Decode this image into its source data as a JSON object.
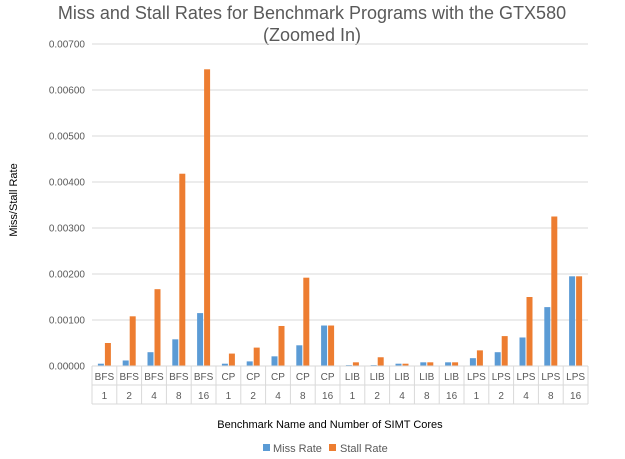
{
  "chart_data": {
    "type": "bar",
    "title_line1": "Miss and Stall Rates for Benchmark Programs with the GTX580",
    "title_line2": "(Zoomed In)",
    "xlabel": "Benchmark Name and Number of SIMT Cores",
    "ylabel": "Miss/Stall Rate",
    "ylim": [
      0,
      0.007
    ],
    "yticks": [
      "0.00000",
      "0.00100",
      "0.00200",
      "0.00300",
      "0.00400",
      "0.00500",
      "0.00600",
      "0.00700"
    ],
    "categories": [
      {
        "name": "BFS",
        "cores": "1"
      },
      {
        "name": "BFS",
        "cores": "2"
      },
      {
        "name": "BFS",
        "cores": "4"
      },
      {
        "name": "BFS",
        "cores": "8"
      },
      {
        "name": "BFS",
        "cores": "16"
      },
      {
        "name": "CP",
        "cores": "1"
      },
      {
        "name": "CP",
        "cores": "2"
      },
      {
        "name": "CP",
        "cores": "4"
      },
      {
        "name": "CP",
        "cores": "8"
      },
      {
        "name": "CP",
        "cores": "16"
      },
      {
        "name": "LIB",
        "cores": "1"
      },
      {
        "name": "LIB",
        "cores": "2"
      },
      {
        "name": "LIB",
        "cores": "4"
      },
      {
        "name": "LIB",
        "cores": "8"
      },
      {
        "name": "LIB",
        "cores": "16"
      },
      {
        "name": "LPS",
        "cores": "1"
      },
      {
        "name": "LPS",
        "cores": "2"
      },
      {
        "name": "LPS",
        "cores": "4"
      },
      {
        "name": "LPS",
        "cores": "8"
      },
      {
        "name": "LPS",
        "cores": "16"
      }
    ],
    "series": [
      {
        "name": "Miss Rate",
        "color": "#5B9BD5",
        "values": [
          5e-05,
          0.00012,
          0.0003,
          0.00058,
          0.00115,
          5e-05,
          0.0001,
          0.00021,
          0.00045,
          0.00088,
          2e-05,
          2e-05,
          5e-05,
          8e-05,
          8e-05,
          0.00017,
          0.0003,
          0.00062,
          0.00128,
          0.00195
        ]
      },
      {
        "name": "Stall Rate",
        "color": "#ED7D31",
        "values": [
          0.0005,
          0.00108,
          0.00167,
          0.00418,
          0.00645,
          0.00027,
          0.0004,
          0.00087,
          0.00192,
          0.00088,
          8e-05,
          0.00019,
          5e-05,
          8e-05,
          8e-05,
          0.00034,
          0.00065,
          0.0015,
          0.00325,
          0.00195
        ]
      }
    ],
    "grid": true,
    "legend_position": "bottom"
  }
}
